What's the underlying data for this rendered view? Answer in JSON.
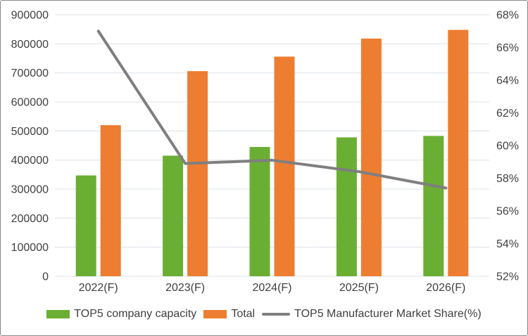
{
  "chart_data": {
    "type": "bar",
    "subtype": "combo-bar-line",
    "title": "",
    "categories": [
      "2022(F)",
      "2023(F)",
      "2024(F)",
      "2025(F)",
      "2026(F)"
    ],
    "series": [
      {
        "name": "TOP5 company capacity",
        "type": "bar",
        "axis": "left",
        "color": "#6BAE34",
        "values": [
          347000,
          415000,
          445000,
          478000,
          483000
        ]
      },
      {
        "name": "Total",
        "type": "bar",
        "axis": "left",
        "color": "#ED7D31",
        "values": [
          520000,
          706000,
          756000,
          818000,
          848000
        ]
      },
      {
        "name": "TOP5 Manufacturer Market Share(%)",
        "type": "line",
        "axis": "right",
        "color": "#7F7F7F",
        "values": [
          67.0,
          58.9,
          59.1,
          58.4,
          57.4
        ]
      }
    ],
    "left_axis": {
      "min": 0,
      "max": 900000,
      "step": 100000,
      "tick_labels": [
        "0",
        "100000",
        "200000",
        "300000",
        "400000",
        "500000",
        "600000",
        "700000",
        "800000",
        "900000"
      ]
    },
    "right_axis": {
      "min": 52,
      "max": 68,
      "step": 2,
      "suffix": "%",
      "tick_labels": [
        "52%",
        "54%",
        "56%",
        "58%",
        "60%",
        "62%",
        "64%",
        "66%",
        "68%"
      ]
    },
    "grid": true,
    "legend_position": "bottom"
  },
  "colors": {
    "grid": "#E3E9EE",
    "tick_text": "#404040",
    "frame_border": "#8A8A8A",
    "background": "#FFFFFF"
  }
}
